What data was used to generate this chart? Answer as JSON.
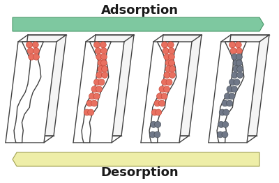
{
  "title_top": "Adsorption",
  "title_bottom": "Desorption",
  "bg_color": "#ffffff",
  "arrow_green_color": "#7ec8a0",
  "arrow_green_edge": "#4a9a6a",
  "arrow_yellow_color": "#eeeea8",
  "arrow_yellow_edge": "#a0a050",
  "pore_line_color": "#404040",
  "red_ball_color": "#e87060",
  "red_ball_edge": "#c04030",
  "gray_ball_color": "#707888",
  "gray_ball_edge": "#404850",
  "title_fontsize": 13,
  "title_color": "#1a1a1a",
  "fig_width": 4.0,
  "fig_height": 2.63,
  "dpi": 100,
  "panels": [
    {
      "red_count": 6,
      "gray_count": 0
    },
    {
      "red_count": 22,
      "gray_count": 0
    },
    {
      "red_count": 22,
      "gray_count": 10
    },
    {
      "red_count": 4,
      "gray_count": 22
    }
  ]
}
